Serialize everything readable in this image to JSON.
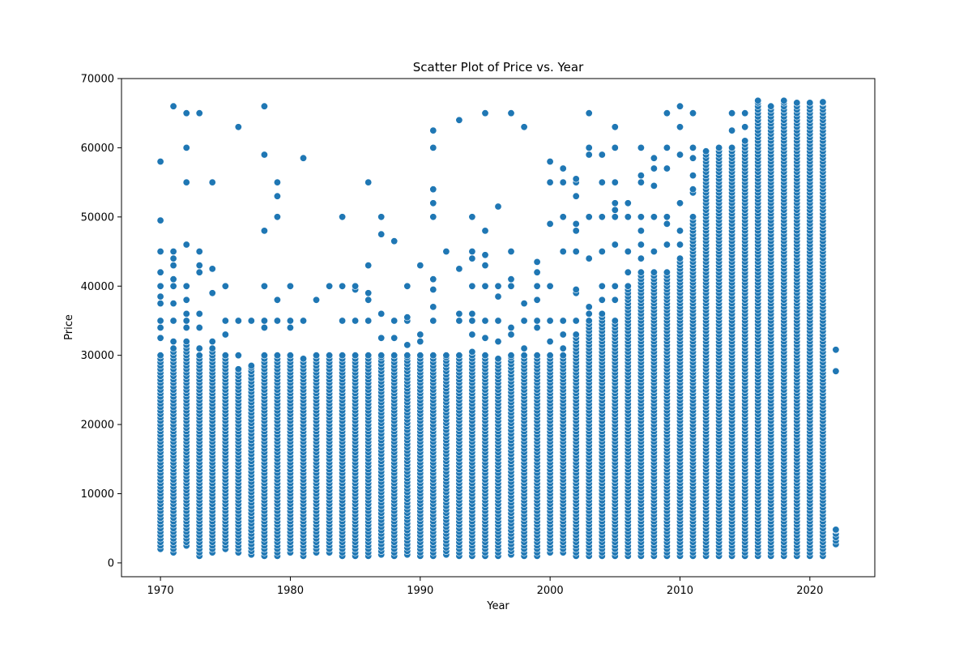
{
  "chart_data": {
    "type": "scatter",
    "title": "Scatter Plot of Price vs. Year",
    "xlabel": "Year",
    "ylabel": "Price",
    "xlim": [
      1967,
      2025
    ],
    "ylim": [
      -2000,
      70000
    ],
    "xticks": [
      1970,
      1980,
      1990,
      2000,
      2010,
      2020
    ],
    "yticks": [
      0,
      10000,
      20000,
      30000,
      40000,
      50000,
      60000,
      70000
    ],
    "grid": false,
    "marker_color": "#1f77b4",
    "marker_edge_color": "#ffffff",
    "series": [
      {
        "points": [
          {
            "year": 1970,
            "low": 2000,
            "high": 30000,
            "extra": [
              32500,
              34000,
              35000,
              37500,
              38500,
              40000,
              42000,
              45000,
              49500,
              58000
            ]
          },
          {
            "year": 1971,
            "low": 1500,
            "high": 31000,
            "extra": [
              32000,
              35000,
              37500,
              40000,
              41000,
              43000,
              44000,
              45000,
              66000
            ]
          },
          {
            "year": 1972,
            "low": 2500,
            "high": 32000,
            "extra": [
              34000,
              35000,
              36000,
              38000,
              40000,
              46000,
              55000,
              60000,
              65000
            ]
          },
          {
            "year": 1973,
            "low": 1000,
            "high": 30000,
            "extra": [
              31000,
              34000,
              36000,
              42000,
              43000,
              45000,
              65000
            ]
          },
          {
            "year": 1974,
            "low": 1500,
            "high": 31000,
            "extra": [
              32000,
              39000,
              42500,
              55000
            ]
          },
          {
            "year": 1975,
            "low": 2000,
            "high": 30000,
            "extra": [
              33000,
              35000,
              40000
            ]
          },
          {
            "year": 1976,
            "low": 1500,
            "high": 28000,
            "extra": [
              30000,
              35000,
              63000
            ]
          },
          {
            "year": 1977,
            "low": 1200,
            "high": 28500,
            "extra": [
              35000
            ]
          },
          {
            "year": 1978,
            "low": 1000,
            "high": 30000,
            "extra": [
              34000,
              35000,
              40000,
              48000,
              59000,
              66000
            ]
          },
          {
            "year": 1979,
            "low": 1000,
            "high": 30000,
            "extra": [
              35000,
              38000,
              50000,
              53000,
              55000
            ]
          },
          {
            "year": 1980,
            "low": 1500,
            "high": 30000,
            "extra": [
              34000,
              35000,
              40000
            ]
          },
          {
            "year": 1981,
            "low": 1000,
            "high": 29500,
            "extra": [
              35000,
              58500
            ]
          },
          {
            "year": 1982,
            "low": 1500,
            "high": 30000,
            "extra": [
              38000
            ]
          },
          {
            "year": 1983,
            "low": 1500,
            "high": 30000,
            "extra": [
              40000
            ]
          },
          {
            "year": 1984,
            "low": 1000,
            "high": 30000,
            "extra": [
              35000,
              40000,
              50000
            ]
          },
          {
            "year": 1985,
            "low": 1000,
            "high": 30000,
            "extra": [
              35000,
              39500,
              40000
            ]
          },
          {
            "year": 1986,
            "low": 1000,
            "high": 30000,
            "extra": [
              35000,
              38000,
              39000,
              43000,
              55000
            ]
          },
          {
            "year": 1987,
            "low": 1200,
            "high": 30000,
            "extra": [
              32500,
              36000,
              47500,
              50000
            ]
          },
          {
            "year": 1988,
            "low": 1000,
            "high": 30000,
            "extra": [
              32500,
              35000,
              46500
            ]
          },
          {
            "year": 1989,
            "low": 1200,
            "high": 30000,
            "extra": [
              31500,
              35000,
              35500,
              40000
            ]
          },
          {
            "year": 1990,
            "low": 1000,
            "high": 30000,
            "extra": [
              32000,
              33000,
              43000
            ]
          },
          {
            "year": 1991,
            "low": 1000,
            "high": 30000,
            "extra": [
              35000,
              37000,
              39500,
              41000,
              50000,
              52000,
              54000,
              60000,
              62500
            ]
          },
          {
            "year": 1992,
            "low": 1200,
            "high": 30000,
            "extra": [
              45000
            ]
          },
          {
            "year": 1993,
            "low": 1000,
            "high": 30000,
            "extra": [
              35000,
              36000,
              42500,
              64000
            ]
          },
          {
            "year": 1994,
            "low": 1000,
            "high": 30500,
            "extra": [
              33000,
              35000,
              36000,
              40000,
              44000,
              45000,
              50000
            ]
          },
          {
            "year": 1995,
            "low": 1000,
            "high": 30000,
            "extra": [
              32500,
              35000,
              40000,
              43000,
              44500,
              48000,
              65000
            ]
          },
          {
            "year": 1996,
            "low": 1000,
            "high": 29500,
            "extra": [
              32000,
              35000,
              38500,
              40000,
              51500
            ]
          },
          {
            "year": 1997,
            "low": 1200,
            "high": 30000,
            "extra": [
              33000,
              34000,
              40000,
              41000,
              45000,
              65000
            ]
          },
          {
            "year": 1998,
            "low": 1000,
            "high": 30000,
            "extra": [
              31000,
              35000,
              37500,
              63000
            ]
          },
          {
            "year": 1999,
            "low": 1000,
            "high": 30000,
            "extra": [
              34000,
              35000,
              38000,
              40000,
              42000,
              43500
            ]
          },
          {
            "year": 2000,
            "low": 1500,
            "high": 30000,
            "extra": [
              32000,
              35000,
              40000,
              49000,
              55000,
              58000
            ]
          },
          {
            "year": 2001,
            "low": 1500,
            "high": 30000,
            "extra": [
              31000,
              33000,
              35000,
              45000,
              50000,
              55000,
              57000
            ]
          },
          {
            "year": 2002,
            "low": 1000,
            "high": 33000,
            "extra": [
              35000,
              39000,
              39500,
              45000,
              48000,
              49000,
              53000,
              55000,
              55500
            ]
          },
          {
            "year": 2003,
            "low": 1000,
            "high": 35000,
            "extra": [
              36000,
              37000,
              44000,
              50000,
              59000,
              60000,
              65000
            ]
          },
          {
            "year": 2004,
            "low": 1000,
            "high": 36000,
            "extra": [
              38000,
              40000,
              45000,
              50000,
              55000,
              59000
            ]
          },
          {
            "year": 2005,
            "low": 1000,
            "high": 35000,
            "extra": [
              38000,
              40000,
              46000,
              50000,
              51000,
              52000,
              55000,
              60000,
              63000
            ]
          },
          {
            "year": 2006,
            "low": 1000,
            "high": 40000,
            "extra": [
              42000,
              45000,
              50000,
              52000
            ]
          },
          {
            "year": 2007,
            "low": 1000,
            "high": 42000,
            "extra": [
              44000,
              46000,
              48000,
              50000,
              55000,
              56000,
              60000
            ]
          },
          {
            "year": 2008,
            "low": 1000,
            "high": 42000,
            "extra": [
              45000,
              50000,
              54500,
              57000,
              58500
            ]
          },
          {
            "year": 2009,
            "low": 1000,
            "high": 42000,
            "extra": [
              46000,
              49000,
              50000,
              57000,
              60000,
              65000
            ]
          },
          {
            "year": 2010,
            "low": 1000,
            "high": 44000,
            "extra": [
              46000,
              48000,
              52000,
              59000,
              63000,
              66000
            ]
          },
          {
            "year": 2011,
            "low": 1000,
            "high": 50000,
            "extra": [
              53500,
              54000,
              56000,
              58500,
              60000,
              65000
            ]
          },
          {
            "year": 2012,
            "low": 1000,
            "high": 59500,
            "extra": []
          },
          {
            "year": 2013,
            "low": 1000,
            "high": 60000,
            "extra": []
          },
          {
            "year": 2014,
            "low": 1000,
            "high": 60000,
            "extra": [
              62500,
              65000
            ]
          },
          {
            "year": 2015,
            "low": 1000,
            "high": 61000,
            "extra": [
              63000,
              65000
            ]
          },
          {
            "year": 2016,
            "low": 1000,
            "high": 66800,
            "extra": []
          },
          {
            "year": 2017,
            "low": 1000,
            "high": 66000,
            "extra": []
          },
          {
            "year": 2018,
            "low": 1000,
            "high": 66800,
            "extra": []
          },
          {
            "year": 2019,
            "low": 1000,
            "high": 66500,
            "extra": []
          },
          {
            "year": 2020,
            "low": 1000,
            "high": 66500,
            "extra": []
          },
          {
            "year": 2021,
            "low": 1000,
            "high": 66600,
            "extra": []
          },
          {
            "year": 2022,
            "low": 2700,
            "high": 4800,
            "extra": [
              27700,
              30800
            ]
          }
        ]
      }
    ]
  }
}
